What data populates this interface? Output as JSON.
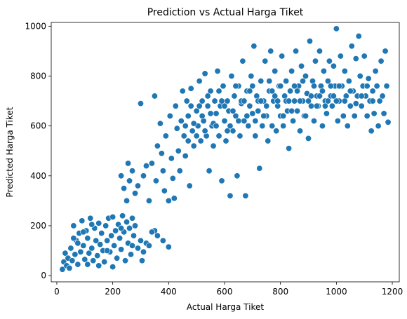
{
  "chart_data": {
    "type": "scatter",
    "title": "Prediction vs Actual Harga Tiket",
    "xlabel": "Actual Harga Tiket",
    "ylabel": "Predicted Harga Tiket",
    "xlim": [
      -20,
      1225
    ],
    "ylim": [
      -25,
      1015
    ],
    "xticks": [
      0,
      200,
      400,
      600,
      800,
      1000,
      1200
    ],
    "yticks": [
      0,
      200,
      400,
      600,
      800,
      1000
    ],
    "grid": false,
    "legend": "none",
    "marker_color": "#1f77b4",
    "marker_edge_color": "#ffffff",
    "points": [
      [
        20,
        25
      ],
      [
        25,
        55
      ],
      [
        30,
        90
      ],
      [
        35,
        40
      ],
      [
        40,
        70
      ],
      [
        45,
        30
      ],
      [
        50,
        110
      ],
      [
        55,
        60
      ],
      [
        60,
        200
      ],
      [
        65,
        85
      ],
      [
        70,
        140
      ],
      [
        75,
        45
      ],
      [
        80,
        170
      ],
      [
        85,
        95
      ],
      [
        90,
        220
      ],
      [
        95,
        120
      ],
      [
        100,
        65
      ],
      [
        105,
        180
      ],
      [
        110,
        150
      ],
      [
        115,
        90
      ],
      [
        120,
        230
      ],
      [
        125,
        110
      ],
      [
        130,
        60
      ],
      [
        135,
        190
      ],
      [
        140,
        140
      ],
      [
        145,
        80
      ],
      [
        150,
        210
      ],
      [
        155,
        125
      ],
      [
        160,
        170
      ],
      [
        165,
        100
      ],
      [
        170,
        55
      ],
      [
        175,
        200
      ],
      [
        180,
        140
      ],
      [
        185,
        230
      ],
      [
        190,
        95
      ],
      [
        195,
        160
      ],
      [
        200,
        235
      ],
      [
        205,
        120
      ],
      [
        210,
        180
      ],
      [
        215,
        70
      ],
      [
        220,
        205
      ],
      [
        225,
        150
      ],
      [
        230,
        105
      ],
      [
        235,
        240
      ],
      [
        240,
        175
      ],
      [
        245,
        60
      ],
      [
        250,
        215
      ],
      [
        255,
        130
      ],
      [
        260,
        190
      ],
      [
        265,
        85
      ],
      [
        270,
        230
      ],
      [
        275,
        160
      ],
      [
        280,
        200
      ],
      [
        290,
        110
      ],
      [
        300,
        140
      ],
      [
        305,
        60
      ],
      [
        310,
        95
      ],
      [
        320,
        130
      ],
      [
        330,
        120
      ],
      [
        350,
        180
      ],
      [
        340,
        175
      ],
      [
        360,
        160
      ],
      [
        380,
        140
      ],
      [
        400,
        115
      ],
      [
        110,
        45
      ],
      [
        150,
        40
      ],
      [
        200,
        35
      ],
      [
        60,
        150
      ],
      [
        75,
        130
      ],
      [
        95,
        175
      ],
      [
        125,
        205
      ],
      [
        180,
        100
      ],
      [
        230,
        190
      ],
      [
        270,
        120
      ],
      [
        230,
        400
      ],
      [
        240,
        350
      ],
      [
        250,
        300
      ],
      [
        255,
        450
      ],
      [
        260,
        380
      ],
      [
        270,
        420
      ],
      [
        280,
        330
      ],
      [
        290,
        360
      ],
      [
        300,
        690
      ],
      [
        310,
        400
      ],
      [
        320,
        440
      ],
      [
        330,
        300
      ],
      [
        340,
        450
      ],
      [
        350,
        720
      ],
      [
        355,
        380
      ],
      [
        360,
        520
      ],
      [
        370,
        610
      ],
      [
        375,
        490
      ],
      [
        380,
        420
      ],
      [
        385,
        340
      ],
      [
        390,
        560
      ],
      [
        400,
        300
      ],
      [
        405,
        640
      ],
      [
        410,
        470
      ],
      [
        415,
        390
      ],
      [
        420,
        310
      ],
      [
        425,
        680
      ],
      [
        430,
        590
      ],
      [
        435,
        500
      ],
      [
        440,
        420
      ],
      [
        445,
        620
      ],
      [
        450,
        740
      ],
      [
        455,
        560
      ],
      [
        460,
        480
      ],
      [
        465,
        700
      ],
      [
        470,
        640
      ],
      [
        475,
        360
      ],
      [
        480,
        750
      ],
      [
        485,
        580
      ],
      [
        490,
        520
      ],
      [
        500,
        660
      ],
      [
        505,
        600
      ],
      [
        510,
        780
      ],
      [
        515,
        540
      ],
      [
        520,
        700
      ],
      [
        525,
        620
      ],
      [
        530,
        810
      ],
      [
        535,
        560
      ],
      [
        540,
        680
      ],
      [
        545,
        420
      ],
      [
        550,
        740
      ],
      [
        555,
        600
      ],
      [
        560,
        520
      ],
      [
        565,
        700
      ],
      [
        570,
        650
      ],
      [
        575,
        820
      ],
      [
        580,
        560
      ],
      [
        585,
        680
      ],
      [
        590,
        380
      ],
      [
        595,
        760
      ],
      [
        600,
        620
      ],
      [
        605,
        540
      ],
      [
        610,
        700
      ],
      [
        615,
        660
      ],
      [
        620,
        320
      ],
      [
        625,
        800
      ],
      [
        630,
        580
      ],
      [
        635,
        720
      ],
      [
        640,
        640
      ],
      [
        645,
        400
      ],
      [
        650,
        760
      ],
      [
        655,
        560
      ],
      [
        660,
        690
      ],
      [
        665,
        860
      ],
      [
        670,
        620
      ],
      [
        675,
        320
      ],
      [
        680,
        740
      ],
      [
        685,
        600
      ],
      [
        690,
        680
      ],
      [
        695,
        800
      ],
      [
        700,
        650
      ],
      [
        705,
        920
      ],
      [
        710,
        560
      ],
      [
        715,
        720
      ],
      [
        720,
        660
      ],
      [
        725,
        430
      ],
      [
        730,
        780
      ],
      [
        735,
        600
      ],
      [
        740,
        700
      ],
      [
        745,
        860
      ],
      [
        750,
        640
      ],
      [
        755,
        540
      ],
      [
        760,
        740
      ],
      [
        765,
        900
      ],
      [
        770,
        600
      ],
      [
        775,
        700
      ],
      [
        780,
        820
      ],
      [
        785,
        580
      ],
      [
        790,
        680
      ],
      [
        795,
        760
      ],
      [
        800,
        640
      ],
      [
        805,
        880
      ],
      [
        810,
        600
      ],
      [
        815,
        720
      ],
      [
        820,
        780
      ],
      [
        825,
        660
      ],
      [
        830,
        510
      ],
      [
        835,
        740
      ],
      [
        840,
        820
      ],
      [
        845,
        620
      ],
      [
        850,
        700
      ],
      [
        855,
        900
      ],
      [
        860,
        660
      ],
      [
        865,
        760
      ],
      [
        870,
        580
      ],
      [
        875,
        840
      ],
      [
        880,
        700
      ],
      [
        885,
        640
      ],
      [
        890,
        800
      ],
      [
        895,
        730
      ],
      [
        900,
        550
      ],
      [
        905,
        940
      ],
      [
        910,
        680
      ],
      [
        915,
        780
      ],
      [
        920,
        620
      ],
      [
        925,
        860
      ],
      [
        930,
        720
      ],
      [
        935,
        680
      ],
      [
        940,
        900
      ],
      [
        945,
        760
      ],
      [
        950,
        600
      ],
      [
        955,
        820
      ],
      [
        960,
        700
      ],
      [
        965,
        650
      ],
      [
        970,
        780
      ],
      [
        975,
        860
      ],
      [
        980,
        720
      ],
      [
        985,
        680
      ],
      [
        990,
        840
      ],
      [
        995,
        760
      ],
      [
        1000,
        990
      ],
      [
        1005,
        620
      ],
      [
        1010,
        700
      ],
      [
        1015,
        880
      ],
      [
        1020,
        760
      ],
      [
        1025,
        640
      ],
      [
        1030,
        820
      ],
      [
        1035,
        720
      ],
      [
        1040,
        600
      ],
      [
        1045,
        780
      ],
      [
        1050,
        680
      ],
      [
        1055,
        920
      ],
      [
        1060,
        740
      ],
      [
        1065,
        640
      ],
      [
        1070,
        870
      ],
      [
        1075,
        720
      ],
      [
        1080,
        960
      ],
      [
        1085,
        800
      ],
      [
        1090,
        680
      ],
      [
        1095,
        760
      ],
      [
        1100,
        880
      ],
      [
        1105,
        720
      ],
      [
        1110,
        640
      ],
      [
        1115,
        790
      ],
      [
        1120,
        700
      ],
      [
        1125,
        580
      ],
      [
        1130,
        740
      ],
      [
        1135,
        650
      ],
      [
        1140,
        820
      ],
      [
        1145,
        760
      ],
      [
        1150,
        600
      ],
      [
        1155,
        700
      ],
      [
        1160,
        860
      ],
      [
        1165,
        720
      ],
      [
        1170,
        650
      ],
      [
        1175,
        900
      ],
      [
        1180,
        760
      ],
      [
        1185,
        615
      ],
      [
        460,
        600
      ],
      [
        480,
        680
      ],
      [
        500,
        560
      ],
      [
        520,
        640
      ],
      [
        540,
        720
      ],
      [
        560,
        610
      ],
      [
        580,
        740
      ],
      [
        600,
        680
      ],
      [
        620,
        600
      ],
      [
        640,
        760
      ],
      [
        660,
        700
      ],
      [
        680,
        640
      ],
      [
        700,
        760
      ],
      [
        720,
        700
      ],
      [
        740,
        640
      ],
      [
        760,
        780
      ],
      [
        780,
        720
      ],
      [
        800,
        760
      ],
      [
        820,
        700
      ],
      [
        840,
        660
      ],
      [
        860,
        740
      ],
      [
        880,
        780
      ],
      [
        900,
        700
      ],
      [
        920,
        760
      ],
      [
        940,
        720
      ],
      [
        960,
        680
      ],
      [
        980,
        760
      ],
      [
        1000,
        700
      ],
      [
        470,
        540
      ],
      [
        490,
        610
      ],
      [
        510,
        680
      ],
      [
        530,
        580
      ],
      [
        550,
        650
      ],
      [
        570,
        600
      ],
      [
        590,
        700
      ],
      [
        610,
        580
      ],
      [
        630,
        660
      ],
      [
        650,
        620
      ],
      [
        670,
        700
      ],
      [
        690,
        740
      ],
      [
        710,
        620
      ],
      [
        730,
        700
      ],
      [
        750,
        680
      ],
      [
        770,
        740
      ],
      [
        790,
        700
      ],
      [
        810,
        640
      ],
      [
        830,
        700
      ],
      [
        850,
        760
      ],
      [
        870,
        700
      ],
      [
        890,
        640
      ],
      [
        910,
        720
      ],
      [
        930,
        680
      ],
      [
        950,
        740
      ],
      [
        970,
        700
      ],
      [
        990,
        720
      ],
      [
        1010,
        760
      ],
      [
        1030,
        700
      ],
      [
        1050,
        740
      ],
      [
        1070,
        690
      ],
      [
        1090,
        720
      ],
      [
        1110,
        760
      ],
      [
        1130,
        700
      ]
    ]
  }
}
